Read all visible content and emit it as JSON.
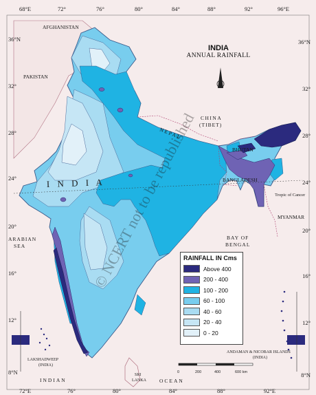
{
  "title": "INDIA",
  "subtitle": "ANNUAL RAINFALL",
  "legend": {
    "title": "RAINFALL IN Cms",
    "items": [
      {
        "label": "Above 400",
        "color": "#2b2a7e"
      },
      {
        "label": "200 - 400",
        "color": "#6f63b4"
      },
      {
        "label": "100 - 200",
        "color": "#1fb3e3"
      },
      {
        "label": "60 - 100",
        "color": "#78cdee"
      },
      {
        "label": "40 - 60",
        "color": "#a9dcf2"
      },
      {
        "label": "20 - 40",
        "color": "#c6e6f5"
      },
      {
        "label": "0 - 20",
        "color": "#e2f1f9"
      }
    ]
  },
  "lon_ticks": [
    "68°E",
    "72°",
    "76°",
    "80°",
    "84°",
    "88°",
    "92°",
    "96°E"
  ],
  "lon_ticks_bottom": [
    "72°E",
    "76°",
    "80°",
    "84°",
    "88°",
    "92°E"
  ],
  "lat_ticks_left": [
    "36°N",
    "32°",
    "28°",
    "24°",
    "20°",
    "16°",
    "12°",
    "8°N"
  ],
  "lat_ticks_right": [
    "36°N",
    "32°",
    "28°",
    "24°",
    "20°",
    "16°",
    "12°",
    "8°N"
  ],
  "places": {
    "afghanistan": "AFGHANISTAN",
    "pakistan": "PAKISTAN",
    "china": "CHINA",
    "tibet": "(TIBET)",
    "nepal": "NEPAL",
    "bhutan": "BHUTAN",
    "bangladesh": "BANGLADESH",
    "myanmar": "MYANMAR",
    "arabian_sea_1": "ARABIAN",
    "arabian_sea_2": "SEA",
    "bay_1": "BAY OF",
    "bay_2": "BENGAL",
    "indian": "INDIAN",
    "ocean": "OCEAN",
    "sri_lanka_1": "SRI",
    "sri_lanka_2": "LANKA",
    "lakshadweep_1": "LAKSHADWEEP",
    "lakshadweep_2": "(INDIA)",
    "andaman_1": "ANDAMAN & NICOBAR ISLANDS",
    "andaman_2": "(INDIA)",
    "india_big": "I     N     D     I     A",
    "tropic": "Tropic of Cancer"
  },
  "scale": {
    "labels": [
      "0",
      "200",
      "400",
      "600 km"
    ]
  },
  "compass_letter": "N",
  "watermark": "© NCERT not to be republished"
}
